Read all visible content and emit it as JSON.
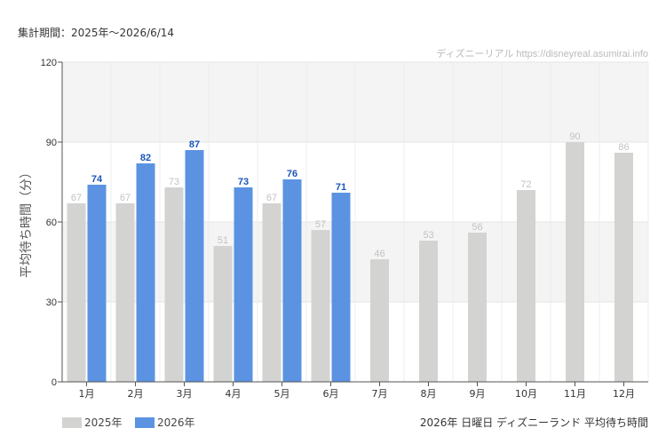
{
  "period_label": "集計期間：2025年〜2026/6/14",
  "colors": {
    "series_2025": "#d3d3d1",
    "series_2026": "#5b93e2",
    "value_2026": "#1a56b8",
    "value_2025": "#c2c2c2",
    "band": "#f4f4f4"
  },
  "chart_data": {
    "type": "bar",
    "title": "2026年 日曜日 ディズニーランド 平均待ち時間",
    "credit": "ディズニーリアル https://disneyreal.asumirai.info",
    "ylabel": "平均待ち時間（分）",
    "xlabel": "",
    "ylim": [
      0,
      120
    ],
    "yticks": [
      0,
      30,
      60,
      90,
      120
    ],
    "grid": true,
    "legend": "bottom-left",
    "categories": [
      "1月",
      "2月",
      "3月",
      "4月",
      "5月",
      "6月",
      "7月",
      "8月",
      "9月",
      "10月",
      "11月",
      "12月"
    ],
    "series": [
      {
        "name": "2025年",
        "values": [
          67,
          67,
          73,
          51,
          67,
          57,
          46,
          53,
          56,
          72,
          90,
          86
        ]
      },
      {
        "name": "2026年",
        "values": [
          74,
          82,
          87,
          73,
          76,
          71,
          null,
          null,
          null,
          null,
          null,
          null
        ]
      }
    ]
  }
}
